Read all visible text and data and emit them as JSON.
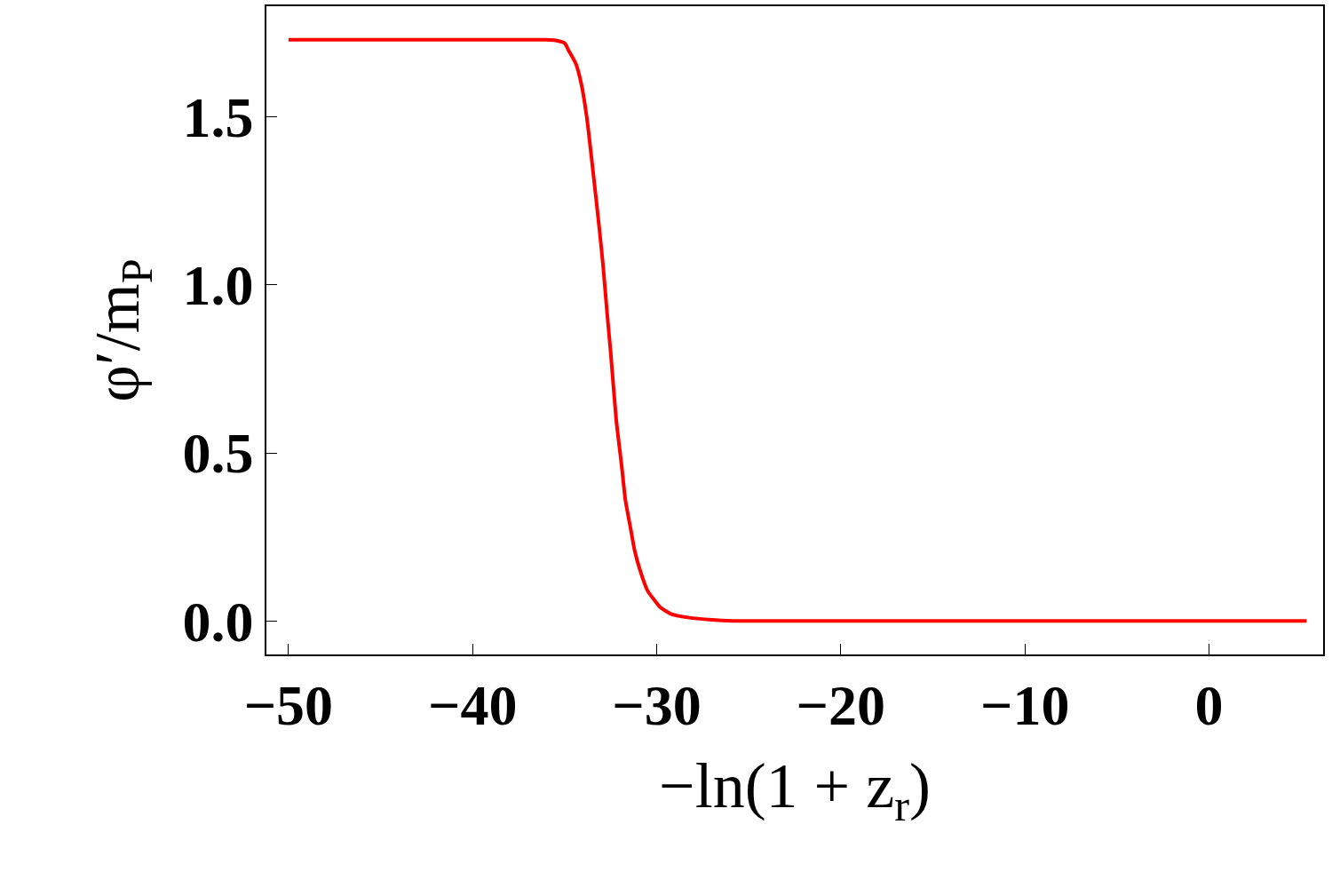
{
  "chart_data": {
    "type": "line",
    "xlabel": "−ln(1 + z$_{r}$)",
    "ylabel": "φ′/m$_{P}$",
    "x": [
      -50,
      -45,
      -40,
      -37,
      -36,
      -35.5,
      -35,
      -34.8,
      -34.4,
      -34.1,
      -33.8,
      -33.4,
      -33.1,
      -32.9,
      -32.7,
      -32.5,
      -32.2,
      -31.9,
      -31.7,
      -31.4,
      -31.2,
      -30.9,
      -30.5,
      -30.1,
      -29.8,
      -29.2,
      -28.3,
      -27,
      -25.9,
      -20,
      -10,
      0,
      5.3
    ],
    "series": [
      {
        "color": "#ff0000",
        "values": [
          1.73,
          1.73,
          1.73,
          1.73,
          1.73,
          1.728,
          1.72,
          1.7,
          1.66,
          1.6,
          1.5,
          1.31,
          1.16,
          1.05,
          0.92,
          0.8,
          0.6,
          0.46,
          0.36,
          0.27,
          0.21,
          0.15,
          0.09,
          0.06,
          0.04,
          0.02,
          0.01,
          0.003,
          0.0,
          0.0,
          0.0,
          0.0,
          0.0
        ]
      }
    ],
    "xlim": [
      -51.2,
      6.2
    ],
    "ylim": [
      -0.1,
      1.83
    ],
    "xticks": [
      -50,
      -40,
      -30,
      -20,
      -10,
      0
    ],
    "yticks": [
      {
        "value": 0,
        "label": "0.0"
      },
      {
        "value": 0.5,
        "label": "0.5"
      },
      {
        "value": 1.0,
        "label": "1.0"
      },
      {
        "value": 1.5,
        "label": "1.5"
      }
    ],
    "marker": "none",
    "line_style": "solid"
  }
}
